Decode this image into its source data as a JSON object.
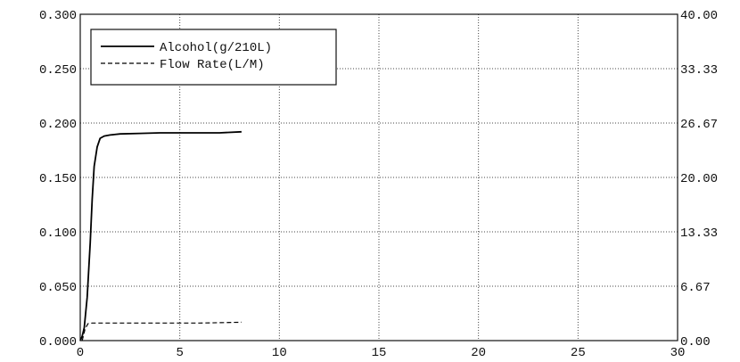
{
  "chart_data": {
    "type": "line",
    "title": "",
    "xlabel": "",
    "ylabel": "",
    "y2label": "",
    "xlim": [
      0,
      30
    ],
    "ylim": [
      0,
      0.3
    ],
    "y2lim": [
      0,
      40
    ],
    "grid": true,
    "legend_position": "top-left",
    "x_ticks": [
      "0",
      "5",
      "10",
      "15",
      "20",
      "25",
      "30"
    ],
    "y_ticks": [
      "0.000",
      "0.050",
      "0.100",
      "0.150",
      "0.200",
      "0.250",
      "0.300"
    ],
    "y2_ticks": [
      "0.00",
      "6.67",
      "13.33",
      "20.00",
      "26.67",
      "33.33",
      "40.00"
    ],
    "series": [
      {
        "name": "Alcohol(g/210L)",
        "axis": "left",
        "style": "solid",
        "color": "#000000",
        "x": [
          0,
          0.1,
          0.2,
          0.35,
          0.5,
          0.6,
          0.7,
          0.85,
          1.0,
          1.2,
          1.5,
          2,
          3,
          4,
          5,
          6,
          7,
          8.1
        ],
        "y": [
          0,
          0.004,
          0.012,
          0.04,
          0.09,
          0.13,
          0.16,
          0.178,
          0.186,
          0.188,
          0.189,
          0.19,
          0.1905,
          0.191,
          0.191,
          0.191,
          0.191,
          0.192
        ]
      },
      {
        "name": "Flow Rate(L/M)",
        "axis": "right",
        "style": "dashed",
        "color": "#000000",
        "x": [
          0.1,
          0.25,
          0.4,
          0.6,
          1,
          2,
          3,
          4,
          5,
          6,
          7,
          8.1
        ],
        "y": [
          0,
          1.5,
          2.1,
          2.15,
          2.15,
          2.15,
          2.15,
          2.15,
          2.15,
          2.15,
          2.2,
          2.25
        ]
      }
    ]
  }
}
